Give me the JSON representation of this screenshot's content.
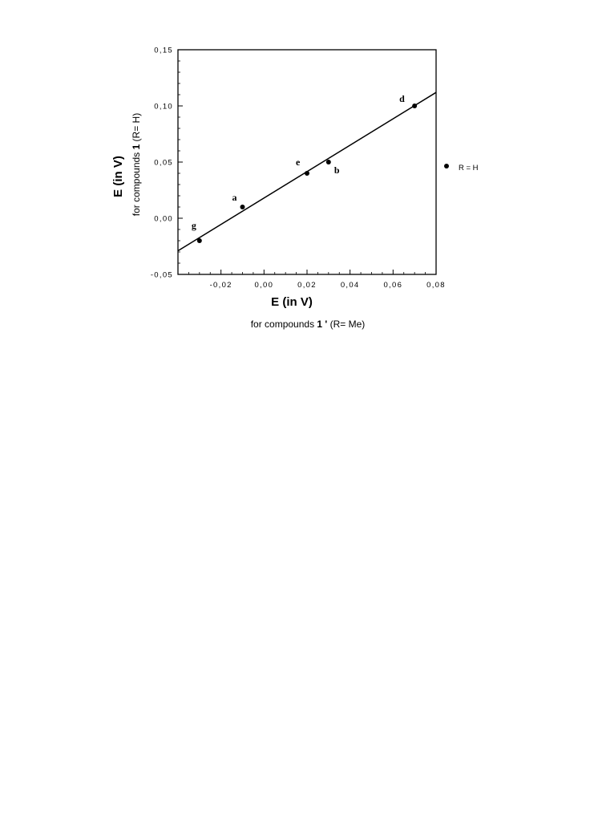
{
  "chart_data": {
    "type": "scatter",
    "xlabel": "E (in V)",
    "xlabel_sub": {
      "prefix": "for compounds ",
      "bold": "1 '",
      "suffix": " (R= Me)"
    },
    "ylabel": "E (in V)",
    "ylabel_sub": {
      "prefix": "for compounds ",
      "bold": "1",
      "suffix": " (R= H)"
    },
    "xlim": [
      -0.04,
      0.08
    ],
    "ylim": [
      -0.05,
      0.15
    ],
    "x_ticks": [
      -0.02,
      0.0,
      0.02,
      0.04,
      0.06,
      0.08
    ],
    "x_tick_labels": [
      "-0,02",
      "0,00",
      "0,02",
      "0,04",
      "0,06",
      "0,08"
    ],
    "y_ticks": [
      -0.05,
      0.0,
      0.05,
      0.1,
      0.15
    ],
    "y_tick_labels": [
      "-0,05",
      "0,00",
      "0,05",
      "0,10",
      "0,15"
    ],
    "grid": false,
    "legend_position": "right",
    "series": [
      {
        "name": "R = H",
        "points": [
          {
            "label": "g",
            "x": -0.03,
            "y": -0.02
          },
          {
            "label": "a",
            "x": -0.01,
            "y": 0.01
          },
          {
            "label": "e",
            "x": 0.02,
            "y": 0.04
          },
          {
            "label": "b",
            "x": 0.03,
            "y": 0.05
          },
          {
            "label": "d",
            "x": 0.07,
            "y": 0.1
          }
        ]
      }
    ],
    "fit_line": {
      "x": [
        -0.04,
        0.08
      ],
      "y": [
        -0.029,
        0.112
      ]
    },
    "colors": {
      "axis": "#000000",
      "marker": "#000000",
      "line": "#000000"
    }
  }
}
